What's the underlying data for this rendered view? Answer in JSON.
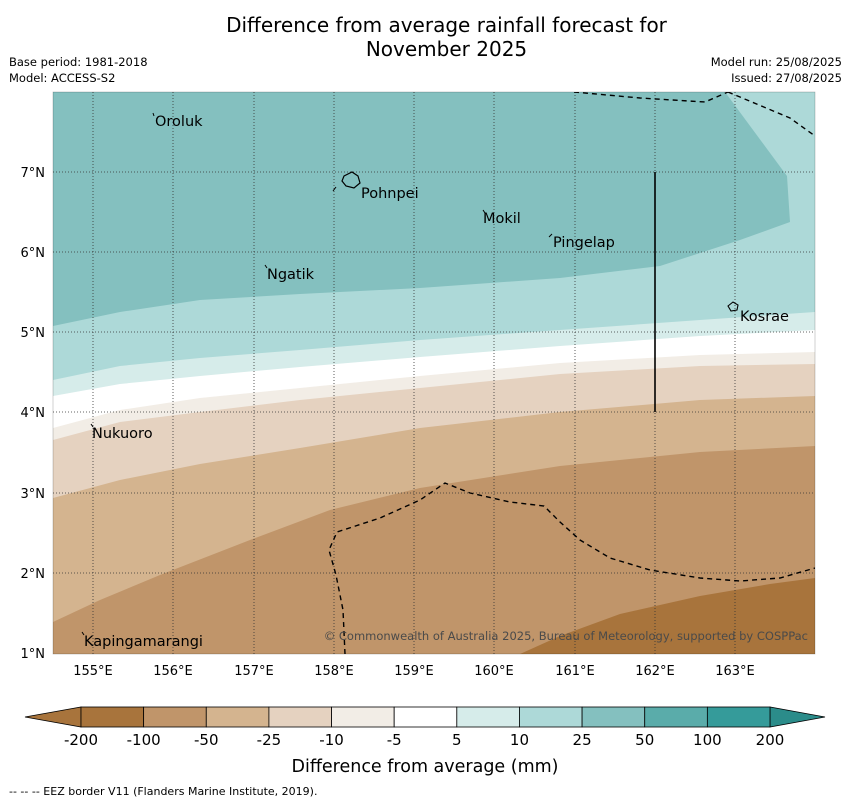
{
  "title_line1": "Difference from average rainfall forecast for",
  "title_line2": "November 2025",
  "base_period": "Base period: 1981-2018",
  "model": "Model: ACCESS-S2",
  "model_run": "Model run: 25/08/2025",
  "issued": "Issued: 27/08/2025",
  "copyright": "© Commonwealth of Australia 2025, Bureau of Meteorology, supported by COSPPac",
  "footer": "--  --  -- EEZ border V11 (Flanders Marine Institute, 2019).",
  "lon_ticks": [
    "155°E",
    "156°E",
    "157°E",
    "158°E",
    "159°E",
    "160°E",
    "161°E",
    "162°E",
    "163°E"
  ],
  "lat_ticks": [
    "7°N",
    "6°N",
    "5°N",
    "4°N",
    "3°N",
    "2°N",
    "1°N"
  ],
  "places": [
    {
      "name": "Oroluk"
    },
    {
      "name": "Pohnpei"
    },
    {
      "name": "Mokil"
    },
    {
      "name": "Pingelap"
    },
    {
      "name": "Ngatik"
    },
    {
      "name": "Kosrae"
    },
    {
      "name": "Nukuoro"
    },
    {
      "name": "Kapingamarangi"
    }
  ],
  "colorbar": {
    "label": "Difference from average (mm)",
    "ticks": [
      "-200",
      "-100",
      "-50",
      "-25",
      "-10",
      "-5",
      "5",
      "10",
      "25",
      "50",
      "100",
      "200"
    ],
    "colors": [
      "#a8743c",
      "#a8743c",
      "#c0956a",
      "#d4b48f",
      "#e5d2c0",
      "#f2ede6",
      "#ffffff",
      "#d6ecea",
      "#add9d8",
      "#84c0bf",
      "#5aacaa",
      "#359b9a",
      "#2b8c8a"
    ]
  },
  "colors": {
    "ocean_top": "#84c0bf",
    "band_25_50": "#add9d8",
    "band_10_25": "#d6ecea",
    "band_neutral": "#ffffff",
    "band_m10": "#f2ede6",
    "band_m25": "#e5d2c0",
    "band_m50": "#d4b48f",
    "band_m100": "#c0956a",
    "band_m200": "#a8743c"
  }
}
